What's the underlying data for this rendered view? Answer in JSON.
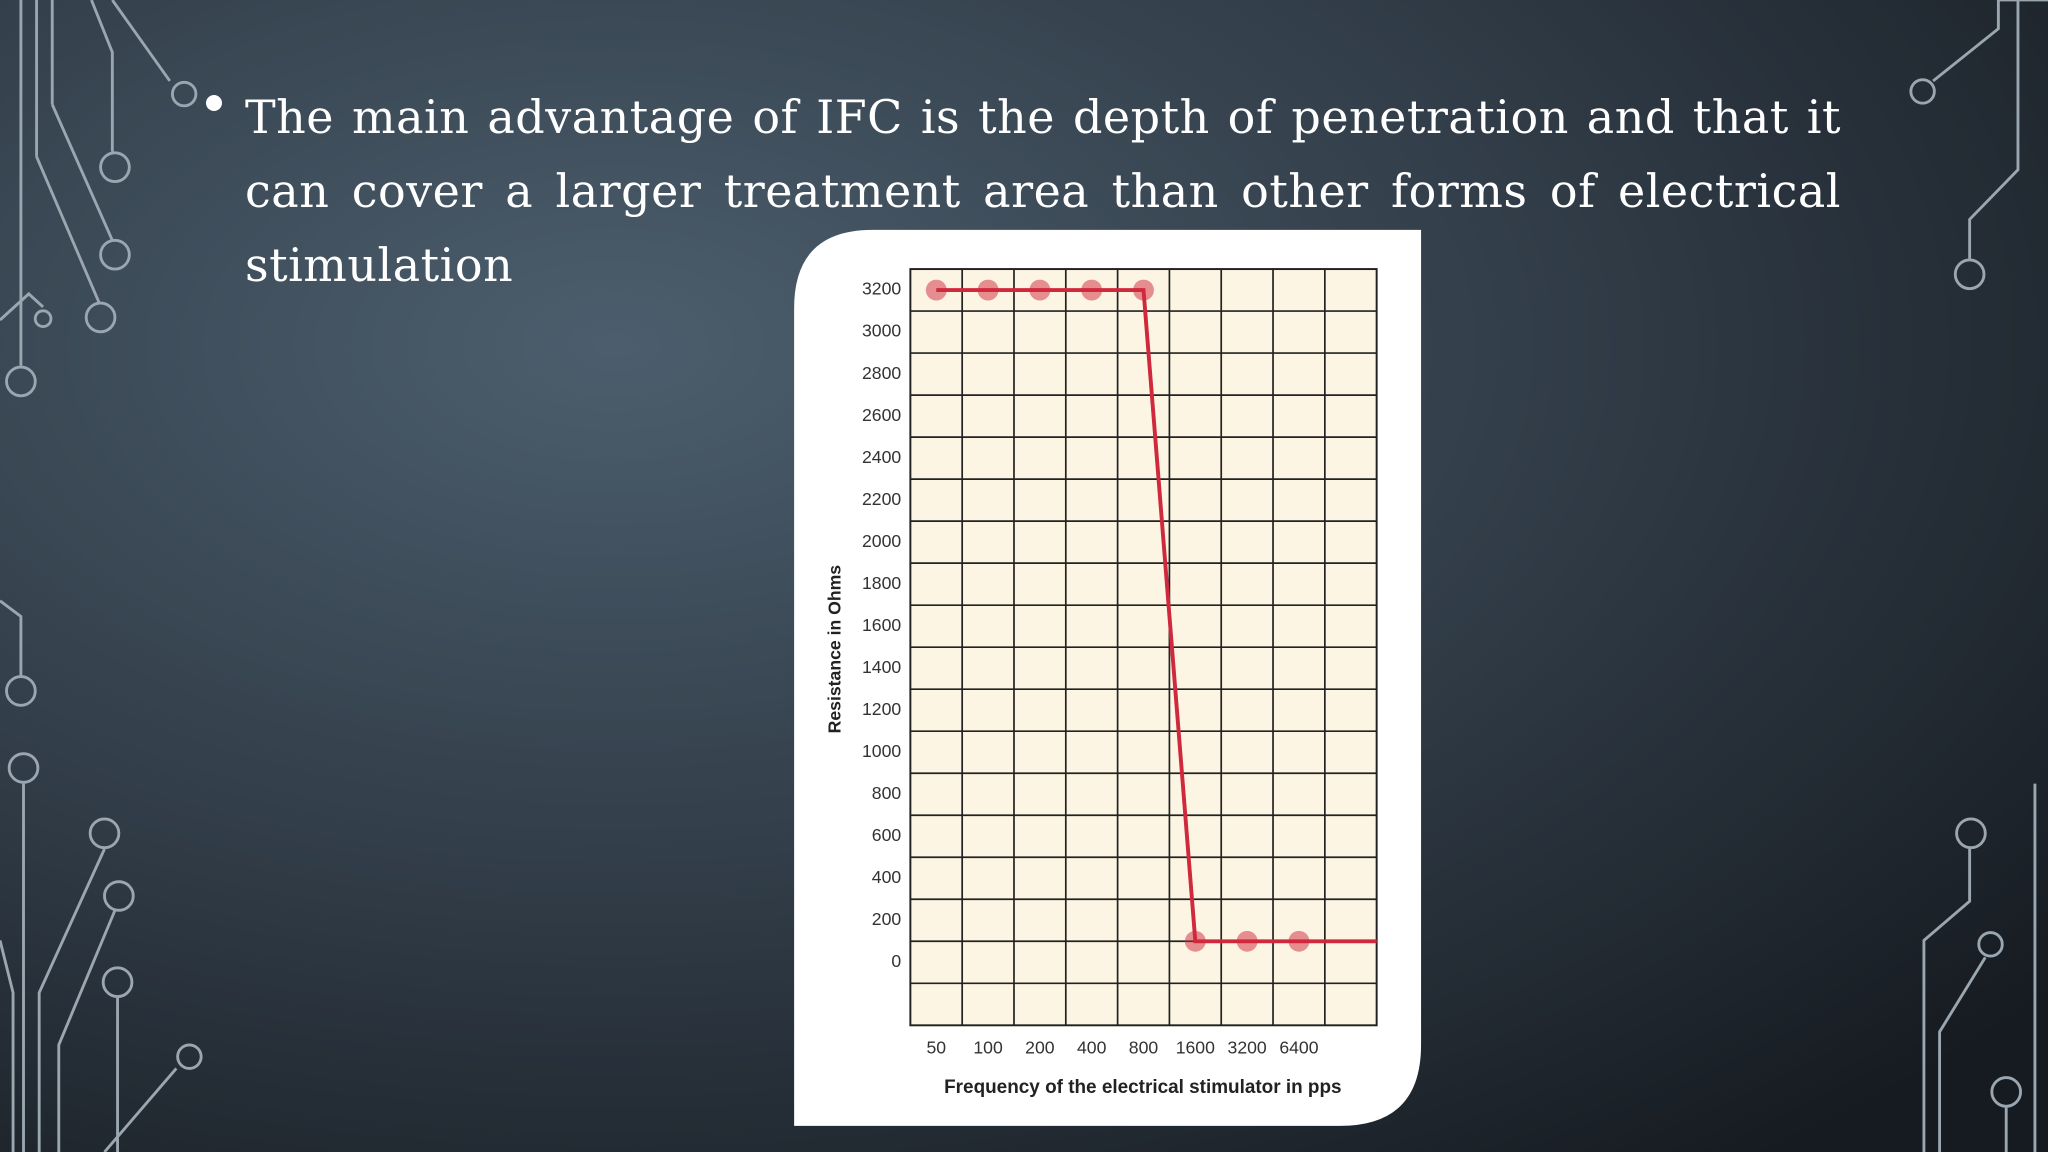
{
  "slide": {
    "bullet": "The main advantage of IFC is the depth of penetration and that it can cover a larger treatment area than other forms of electrical stimulation"
  },
  "chart_data": {
    "type": "line",
    "xlabel": "Frequency of the electrical stimulator in pps",
    "ylabel": "Resistance in Ohms",
    "categories": [
      "50",
      "100",
      "200",
      "400",
      "800",
      "1600",
      "3200",
      "6400"
    ],
    "series": [
      {
        "name": "Resistance",
        "color": "#d0283c",
        "values": [
          3200,
          3200,
          3200,
          3200,
          3200,
          100,
          100,
          100
        ]
      }
    ],
    "ylim": [
      -300,
      3300
    ],
    "yticks": [
      0,
      200,
      400,
      600,
      800,
      1000,
      1200,
      1400,
      1600,
      1800,
      2000,
      2200,
      2400,
      2600,
      2800,
      3000,
      3200
    ],
    "grid": true
  }
}
